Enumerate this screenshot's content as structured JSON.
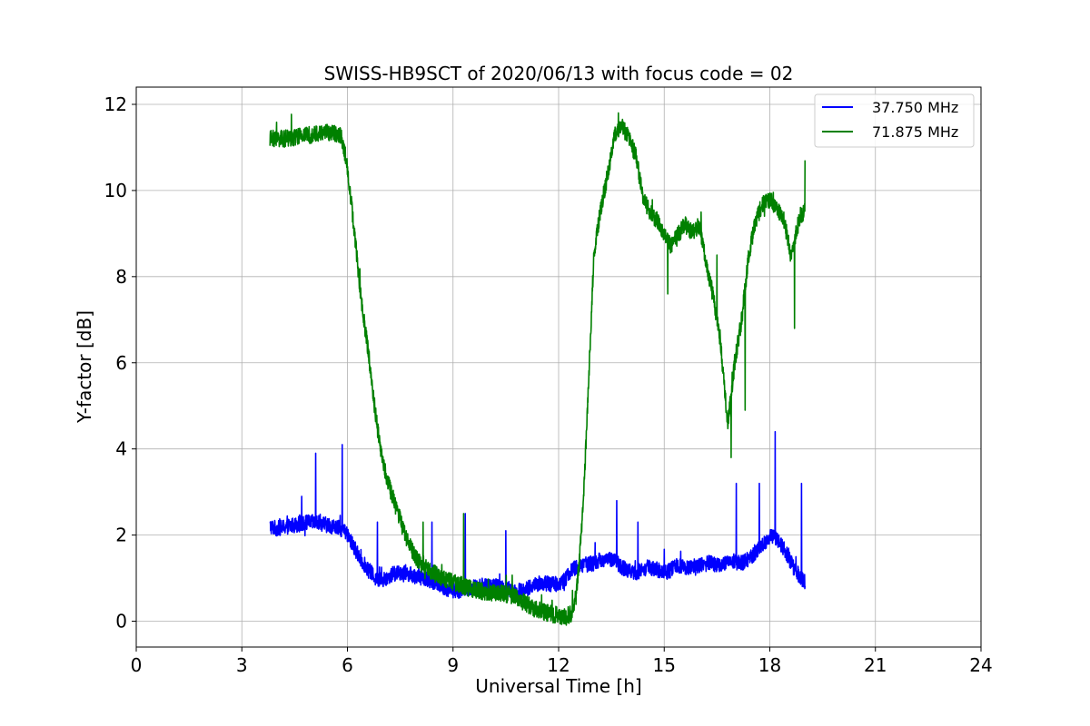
{
  "chart_data": {
    "type": "line",
    "title": "SWISS-HB9SCT of 2020/06/13 with focus code = 02",
    "xlabel": "Universal Time [h]",
    "ylabel": "Y-factor [dB]",
    "xlim": [
      0,
      24
    ],
    "ylim": [
      -0.6,
      12.4
    ],
    "xticks": [
      0,
      3,
      6,
      9,
      12,
      15,
      18,
      21,
      24
    ],
    "yticks": [
      0,
      2,
      4,
      6,
      8,
      10,
      12
    ],
    "grid": true,
    "legend_position": "top-right",
    "series": [
      {
        "name": "37.750 MHz",
        "color": "#0000ff",
        "x": [
          3.8,
          4.0,
          4.3,
          4.6,
          4.9,
          5.2,
          5.5,
          5.8,
          6.0,
          6.2,
          6.4,
          6.6,
          6.8,
          7.0,
          7.3,
          7.6,
          7.9,
          8.2,
          8.5,
          8.8,
          9.1,
          9.4,
          9.7,
          10.0,
          10.3,
          10.6,
          10.9,
          11.2,
          11.5,
          11.8,
          12.1,
          12.4,
          12.7,
          13.0,
          13.3,
          13.6,
          13.9,
          14.2,
          14.5,
          14.8,
          15.1,
          15.4,
          15.7,
          16.0,
          16.3,
          16.6,
          16.9,
          17.2,
          17.5,
          17.8,
          18.1,
          18.4,
          18.7,
          19.0
        ],
        "values": [
          2.2,
          2.15,
          2.2,
          2.25,
          2.3,
          2.28,
          2.22,
          2.15,
          2.0,
          1.7,
          1.4,
          1.2,
          1.0,
          0.95,
          1.1,
          1.15,
          1.05,
          1.0,
          0.9,
          0.75,
          0.7,
          0.75,
          0.8,
          0.85,
          0.8,
          0.75,
          0.7,
          0.8,
          0.9,
          0.85,
          0.9,
          1.2,
          1.3,
          1.35,
          1.45,
          1.4,
          1.2,
          1.1,
          1.25,
          1.2,
          1.15,
          1.3,
          1.25,
          1.3,
          1.35,
          1.3,
          1.4,
          1.35,
          1.5,
          1.8,
          2.0,
          1.7,
          1.2,
          0.9
        ],
        "noise_amplitude": 0.18,
        "spikes": [
          {
            "x": 5.1,
            "y": 3.9
          },
          {
            "x": 5.85,
            "y": 4.1
          },
          {
            "x": 4.7,
            "y": 2.9
          },
          {
            "x": 6.85,
            "y": 2.3
          },
          {
            "x": 9.35,
            "y": 2.5
          },
          {
            "x": 8.4,
            "y": 2.3
          },
          {
            "x": 10.5,
            "y": 2.1
          },
          {
            "x": 13.65,
            "y": 2.8
          },
          {
            "x": 14.25,
            "y": 2.3
          },
          {
            "x": 17.05,
            "y": 3.2
          },
          {
            "x": 17.7,
            "y": 3.2
          },
          {
            "x": 18.15,
            "y": 4.4
          },
          {
            "x": 18.9,
            "y": 3.2
          }
        ]
      },
      {
        "name": "71.875 MHz",
        "color": "#008000",
        "x": [
          3.8,
          4.2,
          4.6,
          5.0,
          5.4,
          5.8,
          5.9,
          6.0,
          6.1,
          6.2,
          6.3,
          6.4,
          6.5,
          6.6,
          6.7,
          6.8,
          6.9,
          7.0,
          7.2,
          7.4,
          7.6,
          7.8,
          8.0,
          8.3,
          8.6,
          8.9,
          9.2,
          9.5,
          9.8,
          10.1,
          10.4,
          10.7,
          11.0,
          11.3,
          11.6,
          11.9,
          12.2,
          12.4,
          12.5,
          12.6,
          12.7,
          12.8,
          12.9,
          13.0,
          13.2,
          13.4,
          13.6,
          13.8,
          14.0,
          14.2,
          14.4,
          14.6,
          14.8,
          15.0,
          15.2,
          15.4,
          15.6,
          15.8,
          16.0,
          16.2,
          16.4,
          16.6,
          16.7,
          16.8,
          16.9,
          17.0,
          17.2,
          17.4,
          17.6,
          17.8,
          18.0,
          18.2,
          18.4,
          18.6,
          18.8,
          19.0
        ],
        "values": [
          11.2,
          11.2,
          11.25,
          11.3,
          11.35,
          11.3,
          11.0,
          10.5,
          9.8,
          9.0,
          8.2,
          7.4,
          6.8,
          6.2,
          5.5,
          4.8,
          4.2,
          3.7,
          3.1,
          2.6,
          2.1,
          1.7,
          1.4,
          1.2,
          1.05,
          0.95,
          0.85,
          0.75,
          0.7,
          0.65,
          0.65,
          0.6,
          0.45,
          0.3,
          0.2,
          0.15,
          0.1,
          0.2,
          0.6,
          1.5,
          2.8,
          4.5,
          6.5,
          8.5,
          9.6,
          10.4,
          11.3,
          11.5,
          11.2,
          10.8,
          9.8,
          9.5,
          9.3,
          9.0,
          8.7,
          9.0,
          9.2,
          9.0,
          9.2,
          8.3,
          7.5,
          6.5,
          5.5,
          4.6,
          5.2,
          6.0,
          7.0,
          8.5,
          9.3,
          9.7,
          9.8,
          9.6,
          9.3,
          8.5,
          9.2,
          9.6
        ],
        "noise_amplitude": 0.2,
        "spikes": [
          {
            "x": 8.15,
            "y": 2.3
          },
          {
            "x": 9.3,
            "y": 2.5
          },
          {
            "x": 13.7,
            "y": 11.8
          },
          {
            "x": 15.1,
            "y": 7.6
          },
          {
            "x": 16.05,
            "y": 9.5
          },
          {
            "x": 16.5,
            "y": 8.5
          },
          {
            "x": 16.9,
            "y": 3.8
          },
          {
            "x": 17.3,
            "y": 4.9
          },
          {
            "x": 18.7,
            "y": 6.8
          },
          {
            "x": 19.0,
            "y": 10.7
          }
        ]
      }
    ]
  }
}
